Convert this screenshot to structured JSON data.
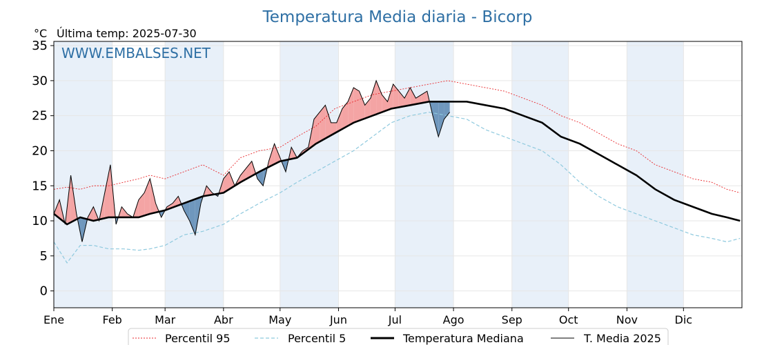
{
  "title": "Temperatura Media diaria - Bicorp",
  "unit_label": "°C",
  "last_temp_label": "Última temp: 2025-07-30",
  "watermark": "WWW.EMBALSES.NET",
  "chart_data": {
    "type": "line",
    "title": "Temperatura Media diaria - Bicorp",
    "xlabel": "",
    "ylabel": "°C",
    "ylim": [
      -2.4,
      35.6
    ],
    "yticks": [
      0,
      5,
      10,
      15,
      20,
      25,
      30,
      35
    ],
    "x_ticks": [
      "Ene",
      "Feb",
      "Mar",
      "Abr",
      "May",
      "Jun",
      "Jul",
      "Ago",
      "Sep",
      "Oct",
      "Nov",
      "Dic"
    ],
    "x_tick_days": [
      1,
      32,
      60,
      91,
      121,
      152,
      182,
      213,
      244,
      274,
      305,
      335
    ],
    "grid": true,
    "legend_position": "bottom",
    "shading": "alternate months shaded light blue; area between T. Media 2025 and Temperatura Mediana filled red when above and blue when below",
    "colors": {
      "p95": "#e8262a",
      "p5": "#8ec9de",
      "median": "#000000",
      "actual": "#000000",
      "above_fill": "#f4a4a4",
      "below_fill": "#6f97bd",
      "month_shade": "#e8f0f9",
      "title": "#2e6fa4"
    },
    "series": [
      {
        "name": "Percentil 95",
        "x": [
          1,
          8,
          15,
          22,
          30,
          38,
          46,
          52,
          60,
          70,
          80,
          91,
          100,
          110,
          121,
          130,
          140,
          150,
          160,
          170,
          180,
          190,
          200,
          210,
          220,
          230,
          240,
          250,
          260,
          270,
          280,
          290,
          300,
          310,
          320,
          330,
          340,
          350,
          358,
          365
        ],
        "y": [
          14.5,
          14.8,
          14.5,
          15.0,
          15.0,
          15.5,
          16.0,
          16.5,
          16.0,
          17.0,
          18.0,
          16.5,
          19.0,
          20.0,
          20.5,
          22.0,
          23.5,
          26.0,
          27.0,
          28.0,
          28.5,
          29.0,
          29.5,
          30.0,
          29.5,
          29.0,
          28.5,
          27.5,
          26.5,
          25.0,
          24.0,
          22.5,
          21.0,
          20.0,
          18.0,
          17.0,
          16.0,
          15.5,
          14.5,
          14.0
        ]
      },
      {
        "name": "Percentil 5",
        "x": [
          1,
          8,
          15,
          22,
          30,
          38,
          46,
          52,
          60,
          70,
          80,
          91,
          100,
          110,
          121,
          130,
          140,
          150,
          160,
          170,
          180,
          190,
          200,
          210,
          220,
          230,
          240,
          250,
          260,
          270,
          280,
          290,
          300,
          310,
          320,
          330,
          340,
          350,
          358,
          365
        ],
        "y": [
          7.0,
          4.0,
          6.5,
          6.5,
          6.0,
          6.0,
          5.8,
          6.0,
          6.5,
          8.0,
          8.5,
          9.5,
          11.0,
          12.5,
          14.0,
          15.5,
          17.0,
          18.5,
          20.0,
          22.0,
          24.0,
          25.0,
          25.5,
          25.0,
          24.5,
          23.0,
          22.0,
          21.0,
          20.0,
          18.0,
          15.5,
          13.5,
          12.0,
          11.0,
          10.0,
          9.0,
          8.0,
          7.5,
          7.0,
          7.5
        ]
      },
      {
        "name": "Temperatura Mediana",
        "x": [
          1,
          8,
          15,
          22,
          30,
          38,
          46,
          52,
          60,
          70,
          80,
          91,
          100,
          110,
          121,
          130,
          140,
          150,
          160,
          170,
          180,
          190,
          200,
          210,
          220,
          230,
          240,
          250,
          260,
          270,
          280,
          290,
          300,
          310,
          320,
          330,
          340,
          350,
          358,
          365
        ],
        "y": [
          11.0,
          9.5,
          10.5,
          10.0,
          10.5,
          10.5,
          10.5,
          11.0,
          11.5,
          12.5,
          13.5,
          14.0,
          15.5,
          17.0,
          18.5,
          19.0,
          21.0,
          22.5,
          24.0,
          25.0,
          26.0,
          26.5,
          27.0,
          27.0,
          27.0,
          26.5,
          26.0,
          25.0,
          24.0,
          22.0,
          21.0,
          19.5,
          18.0,
          16.5,
          14.5,
          13.0,
          12.0,
          11.0,
          10.5,
          10.0
        ]
      },
      {
        "name": "T. Media 2025",
        "x": [
          1,
          4,
          7,
          10,
          13,
          16,
          19,
          22,
          25,
          28,
          31,
          34,
          37,
          40,
          43,
          46,
          49,
          52,
          55,
          58,
          61,
          64,
          67,
          70,
          73,
          76,
          79,
          82,
          85,
          88,
          91,
          94,
          97,
          100,
          103,
          106,
          109,
          112,
          115,
          118,
          121,
          124,
          127,
          130,
          133,
          136,
          139,
          142,
          145,
          148,
          151,
          154,
          157,
          160,
          163,
          166,
          169,
          172,
          175,
          178,
          181,
          184,
          187,
          190,
          193,
          196,
          199,
          202,
          205,
          208,
          211
        ],
        "y": [
          11.0,
          13.0,
          9.5,
          16.5,
          11.0,
          7.0,
          10.5,
          12.0,
          10.0,
          14.0,
          18.0,
          9.5,
          12.0,
          11.0,
          10.5,
          13.0,
          14.0,
          16.0,
          12.5,
          10.5,
          12.0,
          12.5,
          13.5,
          11.5,
          10.0,
          8.0,
          12.5,
          15.0,
          14.0,
          13.5,
          16.0,
          17.0,
          15.0,
          16.5,
          17.5,
          18.5,
          16.0,
          15.0,
          18.5,
          21.0,
          19.0,
          17.0,
          20.5,
          19.0,
          20.0,
          20.5,
          24.5,
          25.5,
          26.5,
          24.0,
          24.0,
          26.0,
          27.0,
          29.0,
          28.5,
          26.5,
          27.5,
          30.0,
          28.0,
          27.0,
          29.5,
          28.5,
          27.5,
          29.0,
          27.5,
          28.0,
          28.5,
          25.0,
          22.0,
          24.5,
          25.5
        ]
      }
    ]
  },
  "legend": {
    "p95": "Percentil 95",
    "p5": "Percentil 5",
    "median": "Temperatura Mediana",
    "actual": "T. Media 2025"
  }
}
